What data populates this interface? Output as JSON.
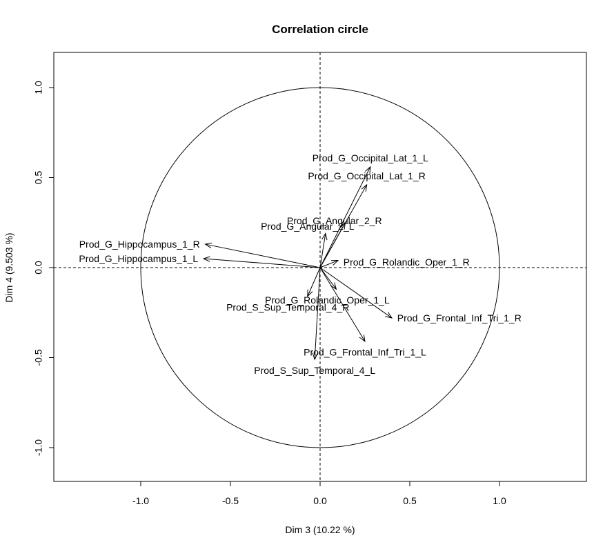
{
  "chart_data": {
    "type": "scatter",
    "title": "Correlation circle",
    "xlabel": "Dim 3 (10.22 %)",
    "ylabel": "Dim 4 (9.503 %)",
    "xlim": [
      -1.4,
      1.4
    ],
    "ylim": [
      -1.2,
      1.2
    ],
    "x_ticks": [
      -1.0,
      -0.5,
      0.0,
      0.5,
      1.0
    ],
    "x_tick_labels": [
      "-1.0",
      "-0.5",
      "0.0",
      "0.5",
      "1.0"
    ],
    "y_ticks": [
      -1.0,
      -0.5,
      0.0,
      0.5,
      1.0
    ],
    "y_tick_labels": [
      "-1.0",
      "-0.5",
      "0.0",
      "0.5",
      "1.0"
    ],
    "unit_circle": true,
    "reference_lines": "dashed at x=0 and y=0",
    "vectors": [
      {
        "label": "Prod_G_Occipital_Lat_1_L",
        "x": 0.28,
        "y": 0.56,
        "label_x": 0.28,
        "label_y": 0.61,
        "anchor": "middle"
      },
      {
        "label": "Prod_G_Occipital_Lat_1_R",
        "x": 0.26,
        "y": 0.46,
        "label_x": 0.26,
        "label_y": 0.51,
        "anchor": "middle"
      },
      {
        "label": "Prod_G_Angular_2_R",
        "x": 0.14,
        "y": 0.25,
        "label_x": 0.08,
        "label_y": 0.26,
        "anchor": "middle"
      },
      {
        "label": "Prod_G_Angular_2_L",
        "x": 0.03,
        "y": 0.19,
        "label_x": -0.07,
        "label_y": 0.23,
        "anchor": "middle"
      },
      {
        "label": "Prod_G_Hippocampus_1_R",
        "x": -0.64,
        "y": 0.13,
        "label_x": -0.67,
        "label_y": 0.13,
        "anchor": "end"
      },
      {
        "label": "Prod_G_Hippocampus_1_L",
        "x": -0.65,
        "y": 0.05,
        "label_x": -0.68,
        "label_y": 0.05,
        "anchor": "end"
      },
      {
        "label": "Prod_G_Rolandic_Oper_1_R",
        "x": 0.1,
        "y": 0.04,
        "label_x": 0.13,
        "label_y": 0.03,
        "anchor": "start"
      },
      {
        "label": "Prod_G_Rolandic_Oper_1_L",
        "x": 0.09,
        "y": -0.12,
        "label_x": 0.04,
        "label_y": -0.18,
        "anchor": "middle"
      },
      {
        "label": "Prod_S_Sup_Temporal_4_R",
        "x": -0.07,
        "y": -0.16,
        "label_x": -0.18,
        "label_y": -0.22,
        "anchor": "middle"
      },
      {
        "label": "Prod_G_Frontal_Inf_Tri_1_R",
        "x": 0.4,
        "y": -0.28,
        "label_x": 0.43,
        "label_y": -0.28,
        "anchor": "start"
      },
      {
        "label": "Prod_G_Frontal_Inf_Tri_1_L",
        "x": 0.25,
        "y": -0.41,
        "label_x": 0.25,
        "label_y": -0.47,
        "anchor": "middle"
      },
      {
        "label": "Prod_S_Sup_Temporal_4_L",
        "x": -0.03,
        "y": -0.51,
        "label_x": -0.03,
        "label_y": -0.57,
        "anchor": "middle"
      }
    ]
  }
}
